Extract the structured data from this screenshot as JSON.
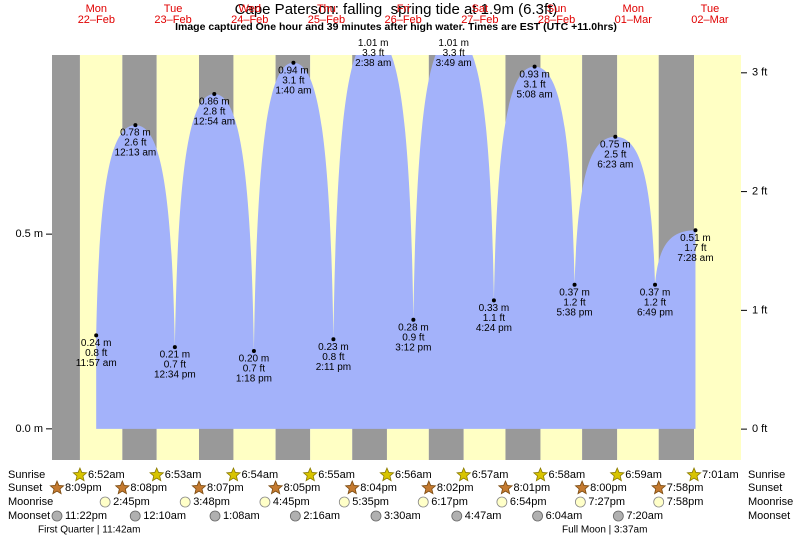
{
  "chart_data": {
    "type": "tide",
    "title": "Cape Paterson: falling  spring tide at 1.9m (6.3ft)",
    "subtitle": "Image captured One hour and 39 minutes after high water. Times are EST (UTC +11.0hrs)",
    "weekdays": [
      null,
      "Mon",
      "Tue",
      "Wed",
      "Thu",
      "Fri",
      "Sat",
      "Sun",
      "Mon",
      "Tue"
    ],
    "dates": [
      null,
      "22–Feb",
      "23–Feb",
      "24–Feb",
      "25–Feb",
      "26–Feb",
      "27–Feb",
      "28–Feb",
      "01–Mar",
      "02–Mar"
    ],
    "ylim": [
      -0.08,
      0.96
    ],
    "yticks": [
      {
        "value": 0,
        "label": "0.0 m"
      },
      {
        "value": 0.5,
        "label": "0.5 m"
      }
    ],
    "y2lim": [
      -0.26,
      3.15
    ],
    "y2ticks": [
      {
        "value": 0,
        "label": "0 ft"
      },
      {
        "value": 1,
        "label": "1 ft"
      },
      {
        "value": 2,
        "label": "2 ft"
      },
      {
        "value": 3,
        "label": "3 ft"
      }
    ],
    "colors": {
      "water": "#a3b2fa",
      "day": "#ffffc4",
      "night": "#999999",
      "label": "#e00000"
    },
    "series": [
      {
        "values": [
          null,
          0.24,
          0.21,
          0.2,
          0.23,
          0.28,
          0.33,
          0.37,
          0.37,
          null
        ],
        "value_labels": [
          null,
          "0.24 m",
          "0.21 m",
          "0.20 m",
          "0.23 m",
          "0.28 m",
          "0.33 m",
          "0.37 m",
          "0.37 m",
          null
        ],
        "ft_labels": [
          null,
          "0.8 ft",
          "0.7 ft",
          "0.7 ft",
          "0.8 ft",
          "0.9 ft",
          "1.1 ft",
          "1.2 ft",
          "1.2 ft",
          null
        ],
        "times": [
          null,
          "11:57 am",
          "12:34 pm",
          "1:18 pm",
          "2:11 pm",
          "3:12 pm",
          "4:24 pm",
          "5:38 pm",
          "6:49 pm",
          null
        ]
      },
      {
        "values": [
          null,
          null,
          0.78,
          0.86,
          0.94,
          1.01,
          1.01,
          0.93,
          0.75,
          0.51
        ],
        "value_labels": [
          null,
          null,
          "0.78 m",
          "0.86 m",
          "0.94 m",
          "1.01 m",
          "1.01 m",
          "0.93 m",
          "0.75 m",
          "0.51 m"
        ],
        "ft_labels": [
          null,
          null,
          "2.6 ft",
          "2.8 ft",
          "3.1 ft",
          "3.3 ft",
          "3.3 ft",
          "3.1 ft",
          "2.5 ft",
          "1.7 ft"
        ],
        "times": [
          null,
          null,
          "12:13 am",
          "12:54 am",
          "1:40 am",
          "2:38 am",
          "3:49 am",
          "5:08 am",
          "6:23 am",
          "7:28 am"
        ]
      }
    ],
    "rows": [
      {
        "label": "Sunrise",
        "times": [
          null,
          "6:52am",
          "6:53am",
          "6:54am",
          "6:55am",
          "6:56am",
          "6:57am",
          "6:58am",
          "6:59am",
          "7:01am"
        ]
      },
      {
        "label": "Sunset",
        "times": [
          "8:09pm",
          "8:08pm",
          "8:07pm",
          "8:05pm",
          "8:04pm",
          "8:02pm",
          "8:01pm",
          "8:00pm",
          "7:58pm",
          null
        ]
      },
      {
        "label": "Moonrise",
        "times": [
          null,
          "2:45pm",
          "3:48pm",
          "4:45pm",
          "5:35pm",
          "6:17pm",
          "6:54pm",
          "7:27pm",
          "7:58pm",
          null
        ]
      },
      {
        "label": "Moonset",
        "times": [
          "11:22pm",
          null,
          "12:10am",
          "1:08am",
          "2:16am",
          "3:30am",
          "4:47am",
          "6:04am",
          "7:20am",
          null
        ]
      }
    ],
    "moon_phases": [
      "First Quarter | 11:42am",
      "Full Moon | 3:37am"
    ]
  }
}
